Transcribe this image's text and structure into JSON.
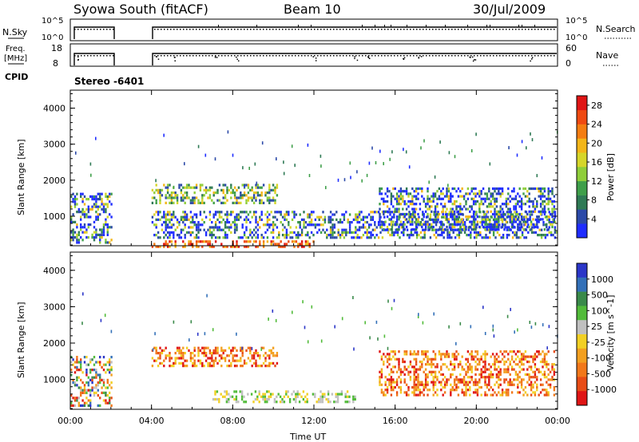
{
  "header": {
    "station": "Syowa South (fitACF)",
    "beam": "Beam 10",
    "date": "30/Jul/2009"
  },
  "strip_panels": {
    "nsky_label": "N.Sky",
    "nsearch_label": "N.Search",
    "freq_label_1": "Freq.",
    "freq_label_2": "[MHz]",
    "nave_label": "Nave",
    "cpid_label": "CPID",
    "cpid_value": "Stereo -6401",
    "nsky_ticks": [
      "10^5",
      "10^0"
    ],
    "nsearch_ticks": [
      "10^5",
      "10^0"
    ],
    "freq_ticks": [
      "18",
      "8"
    ],
    "nave_ticks": [
      "60",
      "0"
    ]
  },
  "chart_data": [
    {
      "type": "heatmap",
      "name": "power",
      "ylabel": "Slant Range [km]",
      "xlabel": "",
      "x_ticks": [
        "00:00",
        "04:00",
        "08:00",
        "12:00",
        "16:00",
        "20:00",
        "00:00"
      ],
      "y_ticks": [
        "1000",
        "2000",
        "3000",
        "4000"
      ],
      "x_range_hours": [
        0,
        24
      ],
      "y_range_km": [
        180,
        4500
      ],
      "colorbar": {
        "label": "Power [dB]",
        "ticks": [
          "4",
          "8",
          "12",
          "16",
          "20",
          "24",
          "28"
        ],
        "colors": [
          "#1f2dff",
          "#2c4aa8",
          "#2f7a55",
          "#3f9f4a",
          "#8fce3a",
          "#d6d62a",
          "#f3b619",
          "#f47d12",
          "#ef4a12",
          "#e01515"
        ]
      },
      "data_gaps_hours": [
        [
          2.0,
          4.0
        ]
      ],
      "bands": [
        {
          "t": [
            0.0,
            2.0
          ],
          "r": [
            250,
            1650
          ],
          "level": "mixed"
        },
        {
          "t": [
            4.0,
            10.2
          ],
          "r": [
            1350,
            1900
          ],
          "level": "mid"
        },
        {
          "t": [
            4.0,
            24.0
          ],
          "r": [
            400,
            1150
          ],
          "level": "mixed"
        },
        {
          "t": [
            4.0,
            12.0
          ],
          "r": [
            180,
            330
          ],
          "level": "high"
        },
        {
          "t": [
            15.2,
            23.8
          ],
          "r": [
            600,
            1800
          ],
          "level": "mixed"
        }
      ]
    },
    {
      "type": "heatmap",
      "name": "velocity",
      "ylabel": "Slant Range [km]",
      "xlabel": "Time UT",
      "x_ticks": [
        "00:00",
        "04:00",
        "08:00",
        "12:00",
        "16:00",
        "20:00",
        "00:00"
      ],
      "y_ticks": [
        "1000",
        "2000",
        "3000",
        "4000"
      ],
      "x_range_hours": [
        0,
        24
      ],
      "y_range_km": [
        180,
        4500
      ],
      "colorbar": {
        "label": "Velocity [m s^-1]",
        "ticks": [
          "1000",
          "500",
          "100",
          "25",
          "-25",
          "-100",
          "-500",
          "-1000"
        ],
        "colors": [
          "#2b36c8",
          "#3370b8",
          "#3a8a4a",
          "#52bb3a",
          "#c0c0c0",
          "#f2d024",
          "#f3a020",
          "#f2781a",
          "#e84c16",
          "#e01515"
        ]
      },
      "data_gaps_hours": [
        [
          2.0,
          4.0
        ]
      ],
      "bands": [
        {
          "t": [
            0.0,
            2.0
          ],
          "r": [
            250,
            1650
          ],
          "level": "mixed"
        },
        {
          "t": [
            4.0,
            10.2
          ],
          "r": [
            1350,
            1900
          ],
          "level": "neg"
        },
        {
          "t": [
            7.0,
            14.0
          ],
          "r": [
            400,
            700
          ],
          "level": "zero"
        },
        {
          "t": [
            15.2,
            23.8
          ],
          "r": [
            600,
            1800
          ],
          "level": "neg"
        }
      ]
    }
  ]
}
